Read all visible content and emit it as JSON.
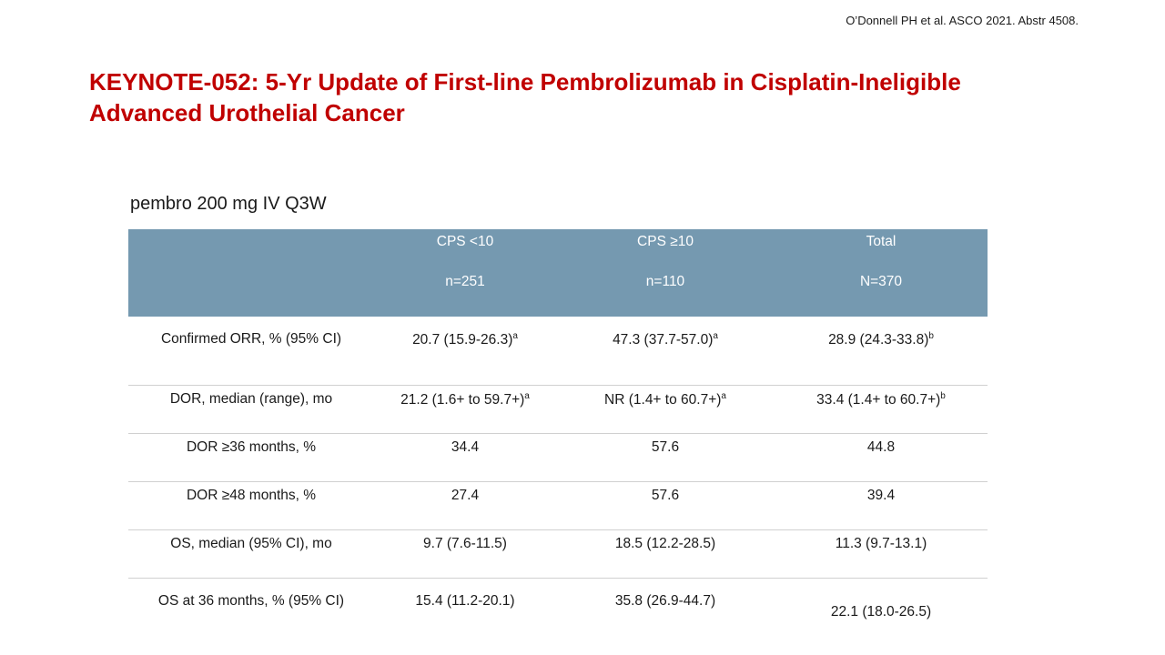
{
  "citation": "O’Donnell PH et al. ASCO 2021. Abstr 4508.",
  "title_line1": "KEYNOTE-052: 5-Yr Update of First-line Pembrolizumab in Cisplatin-Ineligible",
  "title_line2": "Advanced Urothelial Cancer",
  "subtitle": "pembro 200 mg IV Q3W",
  "table": {
    "header_color": "#7599b0",
    "columns": [
      {
        "name": "",
        "n": ""
      },
      {
        "name": "CPS <10",
        "n": "n=251"
      },
      {
        "name": "CPS ≥10",
        "n": "n=110"
      },
      {
        "name": "Total",
        "n": "N=370"
      }
    ],
    "rows": [
      {
        "label": "Confirmed ORR, % (95% CI)",
        "cells": [
          {
            "value": "20.7 (15.9-26.3)",
            "sup": "a"
          },
          {
            "value": "47.3 (37.7-57.0)",
            "sup": "a"
          },
          {
            "value": "28.9 (24.3-33.8)",
            "sup": "b"
          }
        ]
      },
      {
        "label": "DOR, median (range), mo",
        "cells": [
          {
            "value": "21.2 (1.6+ to 59.7+)",
            "sup": "a"
          },
          {
            "value": "NR (1.4+ to 60.7+)",
            "sup": "a"
          },
          {
            "value": "33.4 (1.4+ to 60.7+)",
            "sup": "b"
          }
        ]
      },
      {
        "label": "DOR ≥36 months, %",
        "cells": [
          {
            "value": "34.4",
            "sup": ""
          },
          {
            "value": "57.6",
            "sup": ""
          },
          {
            "value": "44.8",
            "sup": ""
          }
        ]
      },
      {
        "label": "DOR ≥48 months, %",
        "cells": [
          {
            "value": "27.4",
            "sup": ""
          },
          {
            "value": "57.6",
            "sup": ""
          },
          {
            "value": "39.4",
            "sup": ""
          }
        ]
      },
      {
        "label": "OS, median (95% CI), mo",
        "cells": [
          {
            "value": "9.7 (7.6-11.5)",
            "sup": ""
          },
          {
            "value": "18.5 (12.2-28.5)",
            "sup": ""
          },
          {
            "value": "11.3 (9.7-13.1)",
            "sup": ""
          }
        ]
      },
      {
        "label": "OS at 36 months, % (95% CI)",
        "cells": [
          {
            "value": "15.4 (11.2-20.1)",
            "sup": ""
          },
          {
            "value": "35.8 (26.9-44.7)",
            "sup": ""
          },
          {
            "value": "22.1 (18.0-26.5)",
            "sup": ""
          }
        ]
      }
    ]
  }
}
